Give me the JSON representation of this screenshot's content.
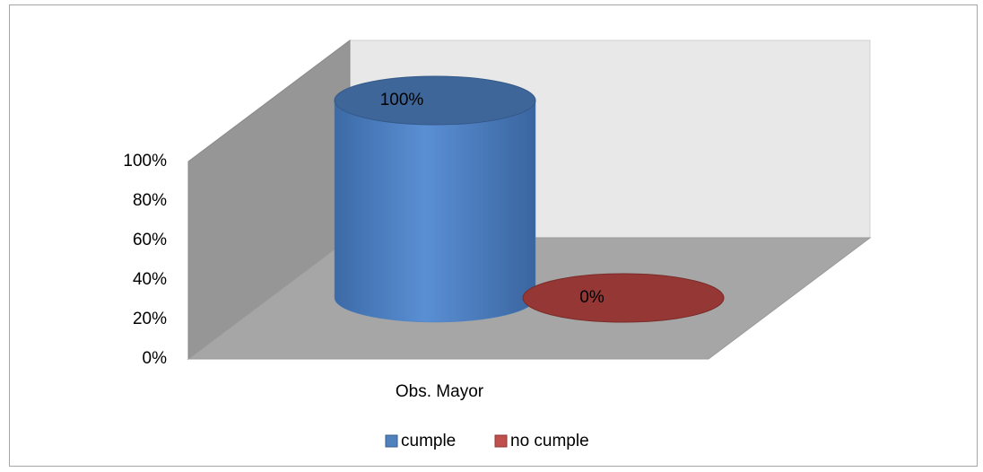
{
  "chart_data": {
    "type": "cylinder3d",
    "categories": [
      "Obs. Mayor"
    ],
    "series": [
      {
        "name": "cumple",
        "color": "#4f81bd",
        "values": [
          100
        ],
        "value_labels": [
          "100%"
        ]
      },
      {
        "name": "no cumple",
        "color": "#c0504d",
        "values": [
          0
        ],
        "value_labels": [
          "0%"
        ]
      }
    ],
    "ylim": [
      0,
      100
    ],
    "yticks": [
      {
        "value": 0,
        "label": "0%"
      },
      {
        "value": 20,
        "label": "20%"
      },
      {
        "value": 40,
        "label": "40%"
      },
      {
        "value": 60,
        "label": "60%"
      },
      {
        "value": 80,
        "label": "80%"
      },
      {
        "value": 100,
        "label": "100%"
      }
    ],
    "legend": "bottom"
  }
}
